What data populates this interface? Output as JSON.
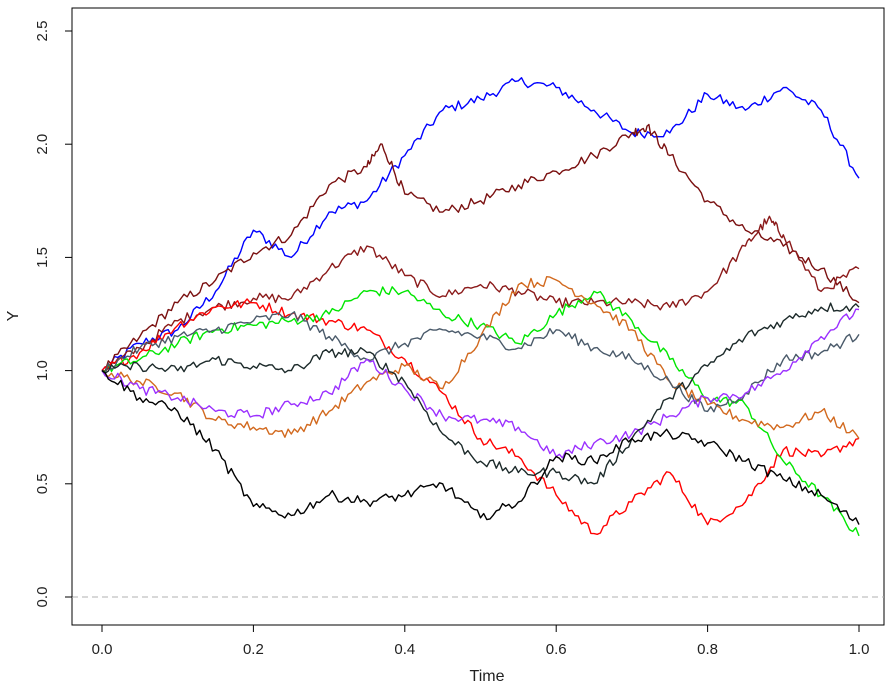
{
  "chart_data": {
    "type": "line",
    "title": "",
    "xlabel": "Time",
    "ylabel": "Y",
    "xlim": [
      0,
      1
    ],
    "ylim": [
      0,
      2.5
    ],
    "x_ticks": [
      "0.0",
      "0.2",
      "0.4",
      "0.6",
      "0.8",
      "1.0"
    ],
    "y_ticks": [
      "0.0",
      "0.5",
      "1.0",
      "1.5",
      "2.0",
      "2.5"
    ],
    "reference_line": {
      "y": 0,
      "style": "dashed",
      "color": "#b0b0b0"
    },
    "grid": false,
    "legend": "none",
    "series": [
      {
        "color": "#0000ff",
        "x": [
          0,
          0.05,
          0.1,
          0.15,
          0.2,
          0.25,
          0.3,
          0.35,
          0.4,
          0.45,
          0.5,
          0.55,
          0.6,
          0.65,
          0.7,
          0.75,
          0.8,
          0.85,
          0.9,
          0.95,
          1.0
        ],
        "y": [
          1.0,
          1.12,
          1.18,
          1.35,
          1.62,
          1.5,
          1.7,
          1.75,
          1.95,
          2.15,
          2.2,
          2.28,
          2.25,
          2.15,
          2.05,
          2.05,
          2.22,
          2.15,
          2.25,
          2.15,
          1.85
        ]
      },
      {
        "color": "#7a1010",
        "x": [
          0,
          0.05,
          0.1,
          0.15,
          0.2,
          0.25,
          0.3,
          0.35,
          0.37,
          0.4,
          0.45,
          0.5,
          0.55,
          0.6,
          0.65,
          0.7,
          0.72,
          0.75,
          0.8,
          0.85,
          0.9,
          0.95,
          1.0
        ],
        "y": [
          1.0,
          1.15,
          1.3,
          1.4,
          1.52,
          1.6,
          1.82,
          1.9,
          2.0,
          1.78,
          1.7,
          1.75,
          1.82,
          1.88,
          1.95,
          2.05,
          2.08,
          1.95,
          1.75,
          1.62,
          1.55,
          1.45,
          1.3
        ]
      },
      {
        "color": "#8b1a1a",
        "x": [
          0,
          0.05,
          0.1,
          0.15,
          0.2,
          0.25,
          0.3,
          0.35,
          0.4,
          0.45,
          0.5,
          0.55,
          0.6,
          0.65,
          0.7,
          0.75,
          0.8,
          0.85,
          0.88,
          0.9,
          0.95,
          1.0
        ],
        "y": [
          1.0,
          1.1,
          1.22,
          1.28,
          1.32,
          1.32,
          1.45,
          1.55,
          1.42,
          1.33,
          1.38,
          1.35,
          1.3,
          1.3,
          1.3,
          1.28,
          1.35,
          1.55,
          1.67,
          1.6,
          1.35,
          1.45
        ]
      },
      {
        "color": "#ff0000",
        "x": [
          0,
          0.05,
          0.1,
          0.15,
          0.2,
          0.25,
          0.3,
          0.35,
          0.4,
          0.45,
          0.5,
          0.55,
          0.6,
          0.65,
          0.7,
          0.75,
          0.8,
          0.85,
          0.9,
          0.95,
          1.0
        ],
        "y": [
          1.0,
          1.08,
          1.2,
          1.28,
          1.3,
          1.25,
          1.22,
          1.18,
          1.05,
          0.9,
          0.7,
          0.62,
          0.45,
          0.28,
          0.42,
          0.55,
          0.32,
          0.42,
          0.65,
          0.62,
          0.7
        ]
      },
      {
        "color": "#00e600",
        "x": [
          0,
          0.05,
          0.1,
          0.15,
          0.2,
          0.25,
          0.3,
          0.35,
          0.4,
          0.45,
          0.5,
          0.55,
          0.6,
          0.65,
          0.7,
          0.75,
          0.8,
          0.85,
          0.9,
          0.95,
          1.0
        ],
        "y": [
          1.0,
          1.05,
          1.12,
          1.18,
          1.2,
          1.22,
          1.25,
          1.35,
          1.35,
          1.25,
          1.2,
          1.12,
          1.25,
          1.35,
          1.22,
          1.05,
          0.88,
          0.85,
          0.6,
          0.45,
          0.27
        ]
      },
      {
        "color": "#d2691e",
        "x": [
          0,
          0.05,
          0.1,
          0.15,
          0.2,
          0.25,
          0.3,
          0.35,
          0.4,
          0.45,
          0.5,
          0.55,
          0.6,
          0.65,
          0.7,
          0.75,
          0.8,
          0.85,
          0.9,
          0.95,
          1.0
        ],
        "y": [
          1.0,
          0.95,
          0.9,
          0.78,
          0.75,
          0.72,
          0.82,
          0.95,
          1.02,
          0.92,
          1.15,
          1.38,
          1.4,
          1.3,
          1.18,
          0.95,
          0.85,
          0.78,
          0.75,
          0.82,
          0.7
        ]
      },
      {
        "color": "#4a5a6a",
        "x": [
          0,
          0.05,
          0.1,
          0.15,
          0.2,
          0.25,
          0.3,
          0.35,
          0.4,
          0.45,
          0.5,
          0.55,
          0.6,
          0.65,
          0.7,
          0.75,
          0.8,
          0.85,
          0.9,
          0.95,
          1.0
        ],
        "y": [
          1.0,
          1.1,
          1.15,
          1.18,
          1.22,
          1.25,
          1.15,
          1.05,
          1.12,
          1.18,
          1.15,
          1.1,
          1.18,
          1.1,
          1.05,
          0.95,
          0.82,
          0.9,
          1.05,
          1.08,
          1.16
        ]
      },
      {
        "color": "#9b30ff",
        "x": [
          0,
          0.05,
          0.1,
          0.15,
          0.2,
          0.25,
          0.3,
          0.35,
          0.4,
          0.45,
          0.5,
          0.55,
          0.6,
          0.65,
          0.7,
          0.75,
          0.8,
          0.85,
          0.9,
          0.95,
          1.0
        ],
        "y": [
          1.0,
          0.92,
          0.88,
          0.82,
          0.8,
          0.85,
          0.9,
          1.05,
          0.92,
          0.8,
          0.78,
          0.75,
          0.62,
          0.68,
          0.72,
          0.8,
          0.88,
          0.9,
          1.0,
          1.15,
          1.27
        ]
      },
      {
        "color": "#1c2a2a",
        "x": [
          0,
          0.05,
          0.1,
          0.15,
          0.2,
          0.25,
          0.3,
          0.35,
          0.4,
          0.45,
          0.5,
          0.55,
          0.6,
          0.65,
          0.7,
          0.75,
          0.8,
          0.85,
          0.9,
          0.95,
          1.0
        ],
        "y": [
          1.0,
          1.02,
          1.0,
          1.05,
          1.02,
          1.0,
          1.08,
          1.08,
          0.95,
          0.72,
          0.6,
          0.55,
          0.55,
          0.5,
          0.7,
          0.88,
          1.02,
          1.15,
          1.22,
          1.28,
          1.28
        ]
      },
      {
        "color": "#000000",
        "x": [
          0,
          0.05,
          0.1,
          0.15,
          0.2,
          0.25,
          0.3,
          0.35,
          0.4,
          0.45,
          0.5,
          0.55,
          0.6,
          0.65,
          0.7,
          0.75,
          0.8,
          0.85,
          0.9,
          0.95,
          1.0
        ],
        "y": [
          1.0,
          0.88,
          0.82,
          0.65,
          0.4,
          0.36,
          0.45,
          0.42,
          0.45,
          0.5,
          0.35,
          0.42,
          0.62,
          0.6,
          0.7,
          0.72,
          0.68,
          0.6,
          0.52,
          0.45,
          0.32
        ]
      }
    ]
  }
}
